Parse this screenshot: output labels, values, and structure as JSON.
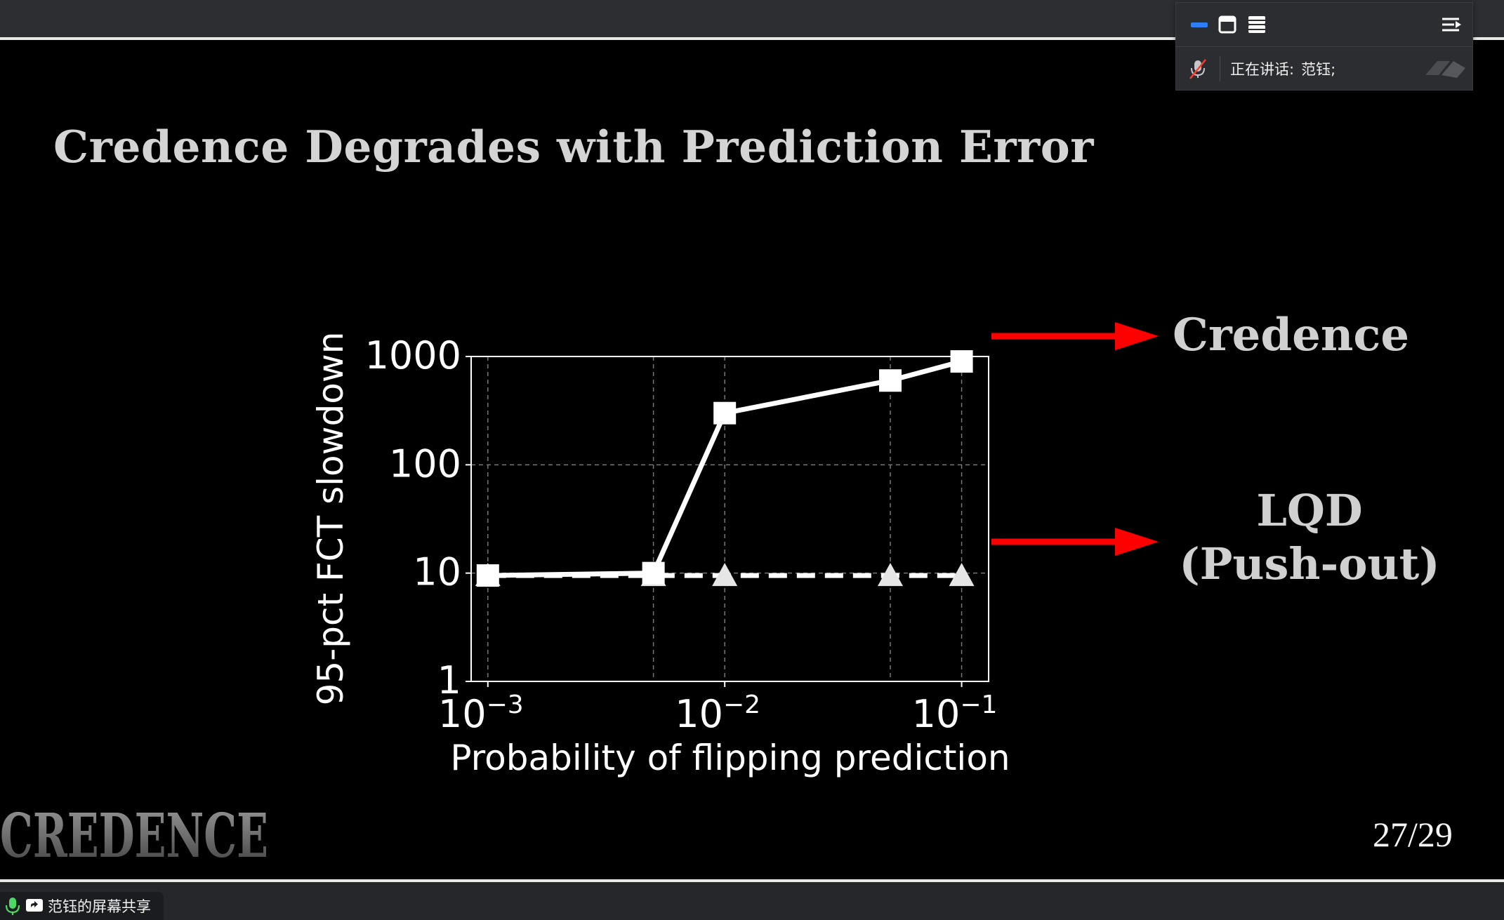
{
  "meeting": {
    "speaking_label": "正在讲话:",
    "speaker_name": "范钰;",
    "share_label": "范钰的屏幕共享"
  },
  "slide": {
    "title": "Credence Degrades with Prediction Error",
    "page": "27/29",
    "logo_text": "CREDENCE",
    "label_credence": "Credence",
    "label_lqd_line1": "LQD",
    "label_lqd_line2": "(Push-out)",
    "arrow_color": "#ff0000"
  },
  "chart_data": {
    "type": "line",
    "xlabel": "Probability of flipping prediction",
    "ylabel": "95-pct FCT slowdown",
    "xscale": "log",
    "yscale": "log",
    "xlim": [
      0.00085,
      0.13
    ],
    "ylim": [
      1,
      1000
    ],
    "x_ticks": [
      {
        "value": 0.001,
        "base": "10",
        "exp": "−3"
      },
      {
        "value": 0.01,
        "base": "10",
        "exp": "−2"
      },
      {
        "value": 0.1,
        "base": "10",
        "exp": "−1"
      }
    ],
    "y_ticks": [
      {
        "value": 1,
        "label": "1"
      },
      {
        "value": 10,
        "label": "10"
      },
      {
        "value": 100,
        "label": "100"
      },
      {
        "value": 1000,
        "label": "1000"
      }
    ],
    "x_minor_gridlines": [
      0.005,
      0.05
    ],
    "grid": true,
    "legend": "none",
    "series": [
      {
        "marker": "square",
        "style": "solid",
        "x": [
          0.001,
          0.005,
          0.01,
          0.05,
          0.1
        ],
        "y": [
          9.5,
          10,
          300,
          600,
          900
        ]
      },
      {
        "marker": "triangle",
        "style": "dashed",
        "x": [
          0.001,
          0.005,
          0.01,
          0.05,
          0.1
        ],
        "y": [
          9.5,
          9.5,
          9.5,
          9.5,
          9.5
        ]
      }
    ]
  }
}
